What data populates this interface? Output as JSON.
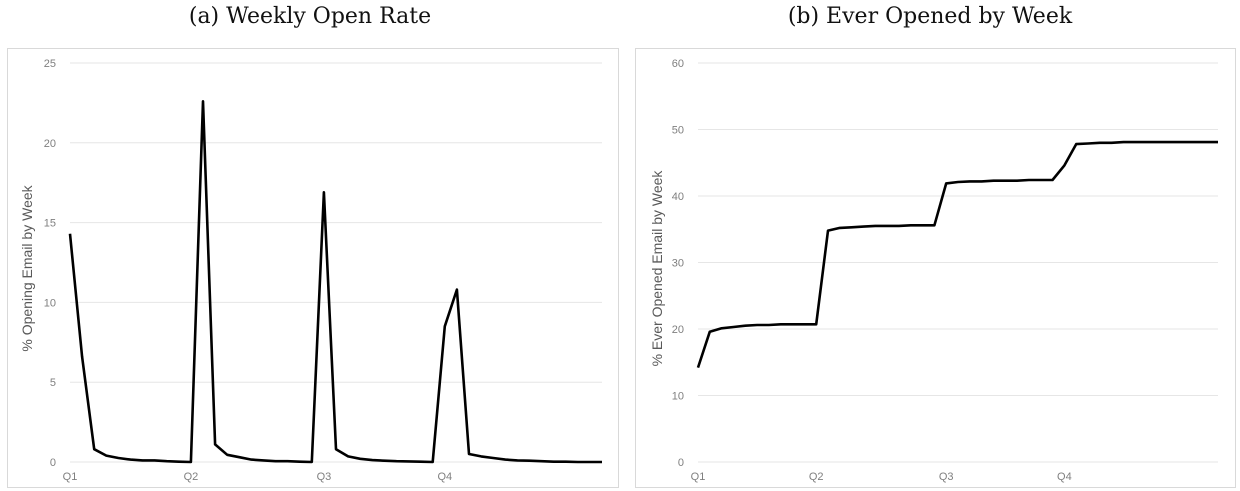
{
  "panels": [
    {
      "title": "(a) Weekly Open Rate"
    },
    {
      "title": "(b) Ever Opened by Week"
    }
  ],
  "chart_data": [
    {
      "type": "line",
      "title": "(a) Weekly Open Rate",
      "xlabel": "",
      "ylabel": "% Opening Email by Week",
      "ylim": [
        0,
        25
      ],
      "yticks": [
        0,
        5,
        10,
        15,
        20,
        25
      ],
      "grid": true,
      "legend": "none",
      "x_ticks": [
        {
          "label": "Q1",
          "week": 0
        },
        {
          "label": "Q2",
          "week": 10
        },
        {
          "label": "Q3",
          "week": 21
        },
        {
          "label": "Q4",
          "week": 31
        }
      ],
      "x": [
        0,
        1,
        2,
        3,
        4,
        5,
        6,
        7,
        8,
        9,
        10,
        11,
        12,
        13,
        14,
        15,
        16,
        17,
        18,
        19,
        20,
        21,
        22,
        23,
        24,
        25,
        26,
        27,
        28,
        29,
        30,
        31,
        32,
        33,
        34,
        35,
        36,
        37,
        38,
        39,
        40,
        41,
        42,
        43,
        44
      ],
      "series": [
        {
          "values": [
            14.3,
            6.6,
            0.8,
            0.4,
            0.25,
            0.15,
            0.1,
            0.1,
            0.05,
            0.02,
            0.0,
            22.6,
            1.1,
            0.45,
            0.3,
            0.15,
            0.1,
            0.05,
            0.05,
            0.02,
            0.0,
            16.9,
            0.8,
            0.35,
            0.2,
            0.12,
            0.08,
            0.05,
            0.04,
            0.02,
            0.0,
            8.5,
            10.8,
            0.5,
            0.35,
            0.25,
            0.15,
            0.1,
            0.08,
            0.05,
            0.02,
            0.02,
            0.0,
            0.0,
            0.0
          ]
        }
      ]
    },
    {
      "type": "line",
      "title": "(b) Ever Opened by Week",
      "xlabel": "",
      "ylabel": "% Ever Opened Email by Week",
      "ylim": [
        0,
        60
      ],
      "yticks": [
        0,
        10,
        20,
        30,
        40,
        50,
        60
      ],
      "grid": true,
      "legend": "none",
      "x_ticks": [
        {
          "label": "Q1",
          "week": 0
        },
        {
          "label": "Q2",
          "week": 10
        },
        {
          "label": "Q3",
          "week": 21
        },
        {
          "label": "Q4",
          "week": 31
        }
      ],
      "x": [
        0,
        1,
        2,
        3,
        4,
        5,
        6,
        7,
        8,
        9,
        10,
        11,
        12,
        13,
        14,
        15,
        16,
        17,
        18,
        19,
        20,
        21,
        22,
        23,
        24,
        25,
        26,
        27,
        28,
        29,
        30,
        31,
        32,
        33,
        34,
        35,
        36,
        37,
        38,
        39,
        40,
        41,
        42,
        43,
        44
      ],
      "series": [
        {
          "values": [
            14.2,
            19.6,
            20.1,
            20.3,
            20.5,
            20.6,
            20.6,
            20.7,
            20.7,
            20.7,
            20.7,
            34.8,
            35.2,
            35.3,
            35.4,
            35.5,
            35.5,
            35.5,
            35.6,
            35.6,
            35.6,
            41.9,
            42.1,
            42.2,
            42.2,
            42.3,
            42.3,
            42.3,
            42.4,
            42.4,
            42.4,
            44.6,
            47.8,
            47.9,
            48.0,
            48.0,
            48.1,
            48.1,
            48.1,
            48.1,
            48.1,
            48.1,
            48.1,
            48.1,
            48.1
          ]
        }
      ]
    }
  ]
}
